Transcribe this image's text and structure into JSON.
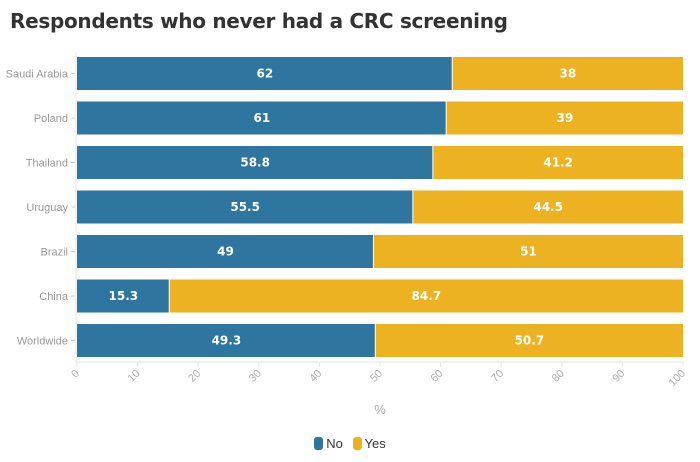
{
  "chart_data": {
    "type": "bar",
    "orientation": "horizontal",
    "stacked": true,
    "title": "Respondents who never had a CRC screening",
    "xlabel": "%",
    "ylabel": "",
    "xlim": [
      0,
      100
    ],
    "xticks": [
      "0",
      "10",
      "20",
      "30",
      "40",
      "50",
      "60",
      "70",
      "80",
      "90",
      "100"
    ],
    "categories": [
      "Saudi Arabia",
      "Poland",
      "Thailand",
      "Uruguay",
      "Brazil",
      "China",
      "Worldwide"
    ],
    "series": [
      {
        "name": "No",
        "color": "#2e75a0",
        "values": [
          62,
          61,
          58.8,
          55.5,
          49,
          15.3,
          49.3
        ]
      },
      {
        "name": "Yes",
        "color": "#edb221",
        "values": [
          38,
          39,
          41.2,
          44.5,
          51,
          84.7,
          50.7
        ]
      }
    ],
    "legend_position": "bottom-center"
  }
}
